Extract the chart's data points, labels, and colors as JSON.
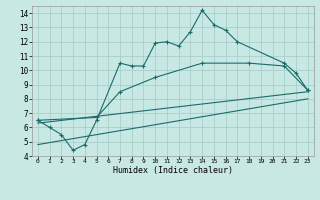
{
  "xlabel": "Humidex (Indice chaleur)",
  "bg_color": "#c8e8e4",
  "line_color": "#1a6b6b",
  "grid_color": "#aacfcb",
  "xlim": [
    -0.5,
    23.5
  ],
  "ylim": [
    4.0,
    14.5
  ],
  "xticks": [
    0,
    1,
    2,
    3,
    4,
    5,
    6,
    7,
    8,
    9,
    10,
    11,
    12,
    13,
    14,
    15,
    16,
    17,
    18,
    19,
    20,
    21,
    22,
    23
  ],
  "yticks": [
    4,
    5,
    6,
    7,
    8,
    9,
    10,
    11,
    12,
    13,
    14
  ],
  "line1_x": [
    0,
    1,
    2,
    3,
    4,
    5,
    7,
    8,
    9,
    10,
    11,
    12,
    13,
    14,
    15,
    16,
    17,
    21,
    22,
    23
  ],
  "line1_y": [
    6.5,
    6.0,
    5.5,
    4.4,
    4.8,
    6.5,
    10.5,
    10.3,
    10.3,
    11.9,
    12.0,
    11.7,
    12.7,
    14.2,
    13.2,
    12.8,
    12.0,
    10.5,
    9.8,
    8.6
  ],
  "line2_x": [
    0,
    5,
    7,
    10,
    14,
    18,
    21,
    23
  ],
  "line2_y": [
    6.5,
    6.7,
    8.5,
    9.5,
    10.5,
    10.5,
    10.3,
    8.6
  ],
  "line3_x": [
    0,
    23
  ],
  "line3_y": [
    6.3,
    8.5
  ],
  "line4_x": [
    0,
    23
  ],
  "line4_y": [
    4.8,
    8.0
  ]
}
